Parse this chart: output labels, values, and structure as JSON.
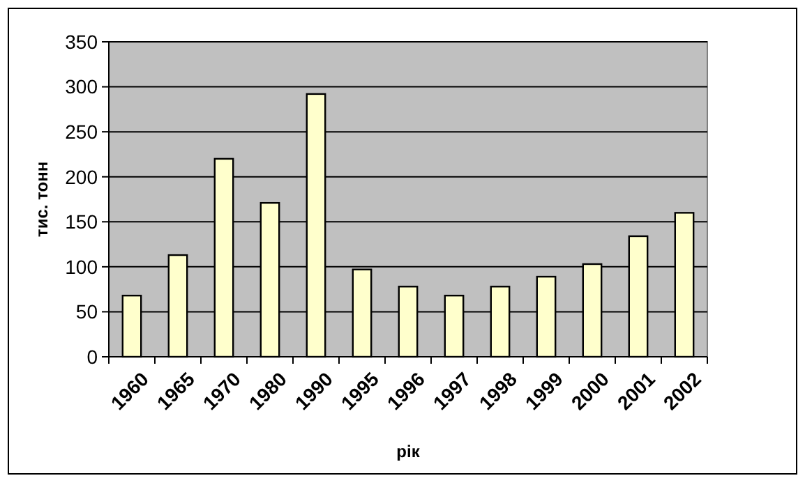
{
  "chart_data": {
    "type": "bar",
    "xlabel": "рік",
    "ylabel": "тис. тонн",
    "categories": [
      "1960",
      "1965",
      "1970",
      "1980",
      "1990",
      "1995",
      "1996",
      "1997",
      "1998",
      "1999",
      "2000",
      "2001",
      "2002"
    ],
    "values": [
      68,
      113,
      220,
      171,
      292,
      97,
      78,
      68,
      78,
      89,
      103,
      134,
      160
    ],
    "color": "#ffffcc",
    "ylim": [
      0,
      350
    ],
    "yticks": [
      0,
      50,
      100,
      150,
      200,
      250,
      300,
      350
    ],
    "grid": "y"
  }
}
